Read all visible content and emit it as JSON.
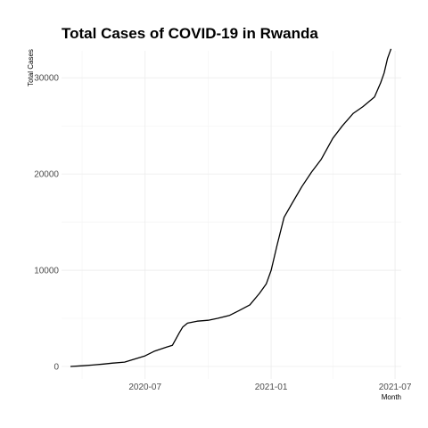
{
  "chart_data": {
    "type": "line",
    "title": "Total Cases of COVID-19 in Rwanda",
    "xlabel": "Month",
    "ylabel": "Total Cases",
    "x_ticks": [
      "2020-07",
      "2021-01",
      "2021-07"
    ],
    "y_ticks": [
      0,
      10000,
      20000,
      30000
    ],
    "xlim": [
      "2020-03-01",
      "2021-07-10"
    ],
    "ylim": [
      -1300,
      32800
    ],
    "grid": true,
    "legend": "none",
    "series": [
      {
        "x": [
          "2020-03-14",
          "2020-04-01",
          "2020-04-15",
          "2020-05-01",
          "2020-05-15",
          "2020-06-01",
          "2020-06-15",
          "2020-07-01",
          "2020-07-15",
          "2020-08-01",
          "2020-08-10",
          "2020-08-20",
          "2020-08-25",
          "2020-09-01",
          "2020-09-15",
          "2020-10-01",
          "2020-10-15",
          "2020-11-01",
          "2020-11-15",
          "2020-12-01",
          "2020-12-15",
          "2020-12-25",
          "2021-01-01",
          "2021-01-10",
          "2021-01-20",
          "2021-02-01",
          "2021-02-15",
          "2021-03-01",
          "2021-03-15",
          "2021-04-01",
          "2021-04-15",
          "2021-05-01",
          "2021-05-15",
          "2021-06-01",
          "2021-06-10",
          "2021-06-15",
          "2021-06-20",
          "2021-06-25"
        ],
        "y": [
          0,
          70,
          150,
          250,
          350,
          450,
          750,
          1100,
          1600,
          2000,
          2200,
          3500,
          4100,
          4500,
          4700,
          4800,
          5000,
          5300,
          5800,
          6400,
          7600,
          8600,
          10000,
          12700,
          15500,
          17000,
          18700,
          20200,
          21500,
          23700,
          25000,
          26300,
          27000,
          28000,
          29500,
          30500,
          32000,
          33000
        ]
      }
    ]
  }
}
